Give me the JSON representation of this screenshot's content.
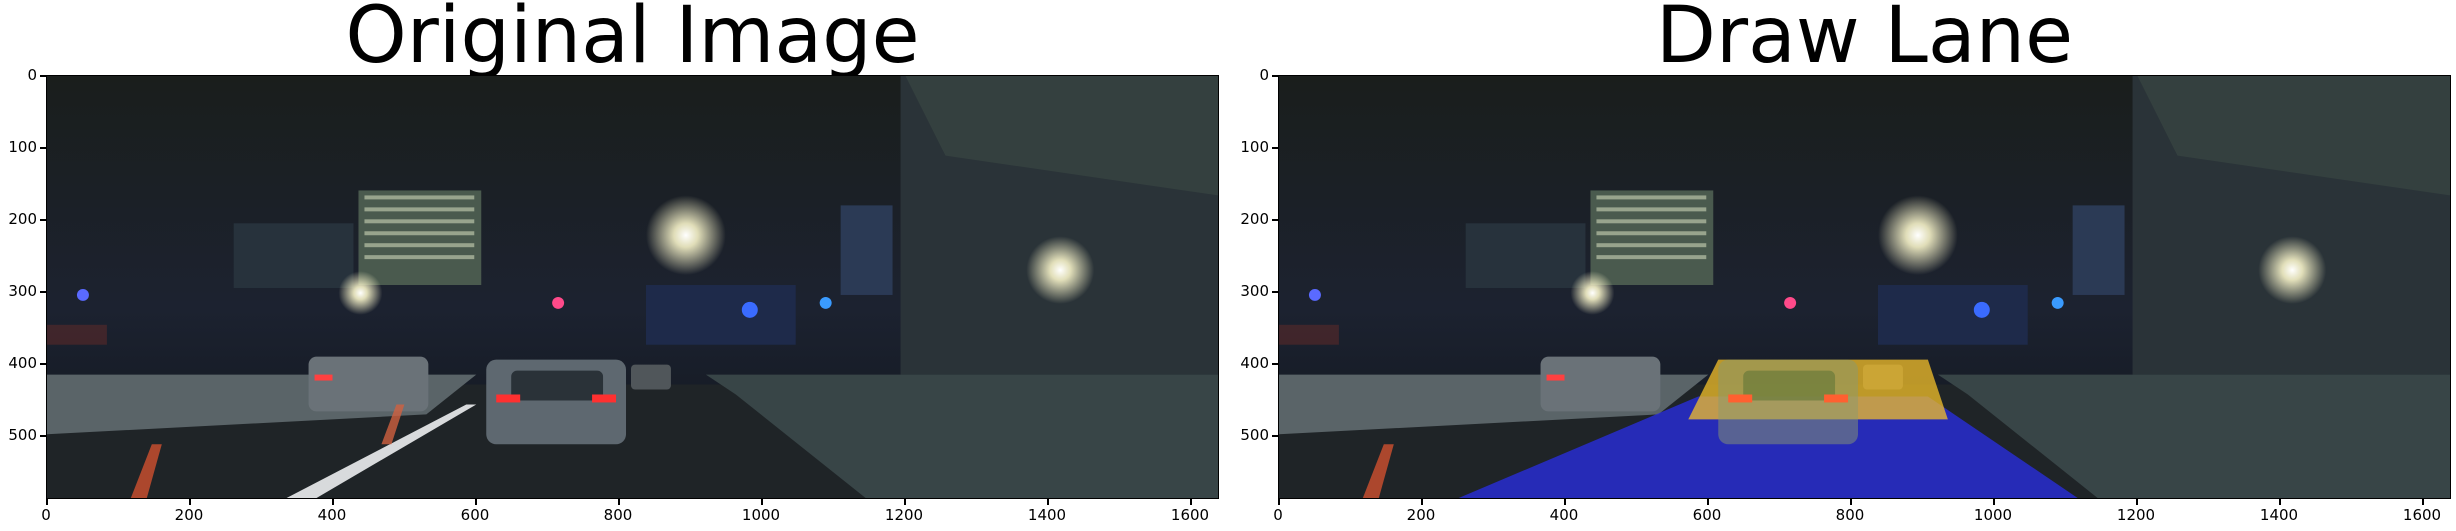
{
  "panels": [
    {
      "title": "Original Image"
    },
    {
      "title": "Draw Lane"
    }
  ],
  "yticks": [
    "0",
    "100",
    "200",
    "300",
    "400",
    "500"
  ],
  "xticks": [
    "0",
    "200",
    "400",
    "600",
    "800",
    "1000",
    "1200",
    "1400",
    "1600"
  ],
  "colors": {
    "lane_fill": "#2a2ee8",
    "car_highlight": "#f4c02a"
  }
}
